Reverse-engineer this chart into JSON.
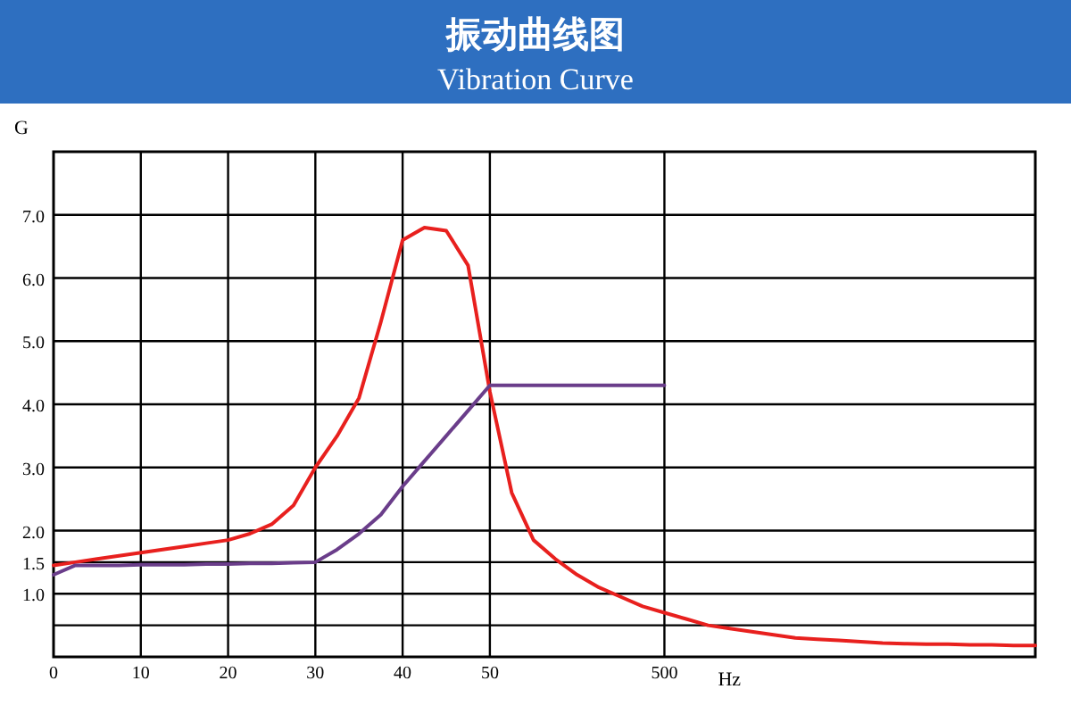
{
  "chart_data": {
    "type": "line",
    "title": "振动曲线图",
    "subtitle": "Vibration Curve",
    "xlabel": "Hz",
    "ylabel": "G",
    "categories": [
      "0",
      null,
      null,
      null,
      "10",
      null,
      null,
      null,
      "20",
      null,
      null,
      null,
      "30",
      null,
      null,
      null,
      "40",
      null,
      null,
      null,
      "50",
      null,
      null,
      null,
      null,
      null,
      null,
      null,
      "500",
      null,
      null,
      null,
      null,
      null,
      null,
      null,
      null,
      null,
      null,
      null,
      null,
      null,
      null,
      null,
      null,
      null
    ],
    "series": [
      {
        "color": "#e8201e",
        "values": [
          1.45,
          1.5,
          1.55,
          1.6,
          1.65,
          1.7,
          1.75,
          1.8,
          1.85,
          1.95,
          2.1,
          2.4,
          3.0,
          3.5,
          4.1,
          5.3,
          6.6,
          6.8,
          6.75,
          6.2,
          4.2,
          2.6,
          1.85,
          1.55,
          1.3,
          1.1,
          0.95,
          0.8,
          0.7,
          0.6,
          0.5,
          0.45,
          0.4,
          0.35,
          0.3,
          0.28,
          0.26,
          0.24,
          0.22,
          0.21,
          0.2,
          0.2,
          0.19,
          0.19,
          0.18,
          0.18
        ]
      },
      {
        "color": "#6a3d8a",
        "values": [
          1.3,
          1.45,
          1.45,
          1.45,
          1.46,
          1.46,
          1.46,
          1.47,
          1.47,
          1.48,
          1.48,
          1.49,
          1.5,
          1.7,
          1.95,
          2.25,
          2.7,
          3.1,
          3.5,
          3.9,
          4.3,
          4.3,
          4.3,
          4.3,
          4.3,
          4.3,
          4.3,
          4.3,
          4.3,
          null,
          null,
          null,
          null,
          null,
          null,
          null,
          null,
          null,
          null,
          null,
          null,
          null,
          null,
          null,
          null,
          null
        ]
      }
    ],
    "ylim": [
      0,
      8
    ],
    "yticks": [
      {
        "value": 0.5,
        "label": null
      },
      {
        "value": 1,
        "label": "1.0"
      },
      {
        "value": 1.5,
        "label": "1.5"
      },
      {
        "value": 2,
        "label": "2.0"
      },
      {
        "value": 3,
        "label": "3.0"
      },
      {
        "value": 4,
        "label": "4.0"
      },
      {
        "value": 5,
        "label": "5.0"
      },
      {
        "value": 6,
        "label": "6.0"
      },
      {
        "value": 7,
        "label": "7.0"
      }
    ],
    "grid": true,
    "marker": "none",
    "line_style": "solid"
  }
}
